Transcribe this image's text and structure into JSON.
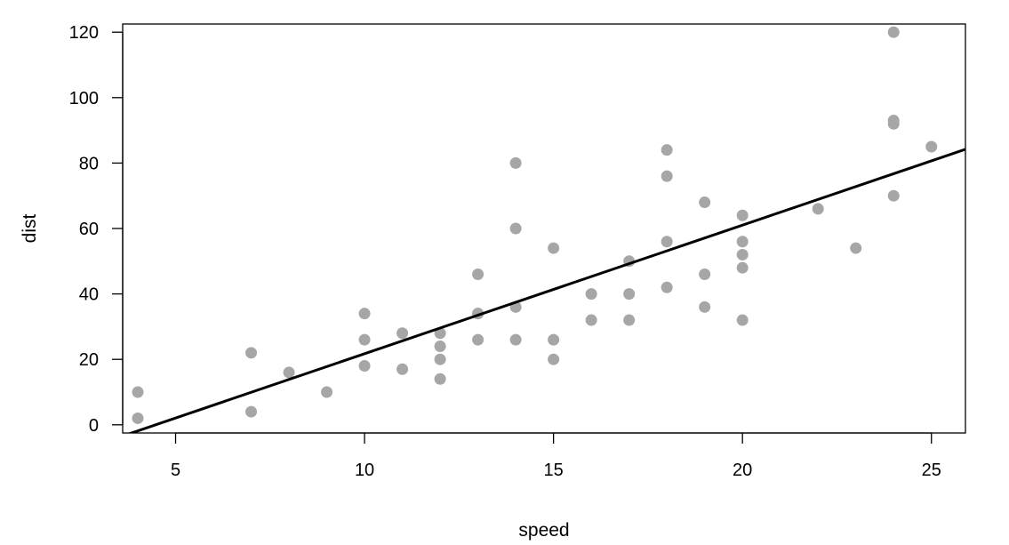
{
  "chart_data": {
    "type": "scatter",
    "title": "",
    "xlabel": "speed",
    "ylabel": "dist",
    "xlim": [
      3.6,
      25.9
    ],
    "ylim": [
      -2.5,
      122.5
    ],
    "xticks": [
      5,
      10,
      15,
      20,
      25
    ],
    "yticks": [
      0,
      20,
      40,
      60,
      80,
      100,
      120
    ],
    "grid": false,
    "legend": "none",
    "point_color": "#a6a6a6",
    "line_color": "#000000",
    "points": [
      [
        4,
        2
      ],
      [
        4,
        10
      ],
      [
        7,
        4
      ],
      [
        7,
        22
      ],
      [
        8,
        16
      ],
      [
        9,
        10
      ],
      [
        10,
        18
      ],
      [
        10,
        26
      ],
      [
        10,
        34
      ],
      [
        11,
        17
      ],
      [
        11,
        28
      ],
      [
        12,
        14
      ],
      [
        12,
        20
      ],
      [
        12,
        24
      ],
      [
        12,
        28
      ],
      [
        13,
        26
      ],
      [
        13,
        34
      ],
      [
        13,
        34
      ],
      [
        13,
        46
      ],
      [
        14,
        26
      ],
      [
        14,
        36
      ],
      [
        14,
        60
      ],
      [
        14,
        80
      ],
      [
        15,
        20
      ],
      [
        15,
        26
      ],
      [
        15,
        54
      ],
      [
        16,
        32
      ],
      [
        16,
        40
      ],
      [
        17,
        32
      ],
      [
        17,
        40
      ],
      [
        17,
        50
      ],
      [
        18,
        42
      ],
      [
        18,
        56
      ],
      [
        18,
        76
      ],
      [
        18,
        84
      ],
      [
        19,
        36
      ],
      [
        19,
        46
      ],
      [
        19,
        68
      ],
      [
        20,
        32
      ],
      [
        20,
        48
      ],
      [
        20,
        52
      ],
      [
        20,
        56
      ],
      [
        20,
        64
      ],
      [
        22,
        66
      ],
      [
        23,
        54
      ],
      [
        24,
        70
      ],
      [
        24,
        92
      ],
      [
        24,
        93
      ],
      [
        24,
        120
      ],
      [
        25,
        85
      ]
    ],
    "fit_line": {
      "intercept": -17.58,
      "slope": 3.93
    }
  }
}
